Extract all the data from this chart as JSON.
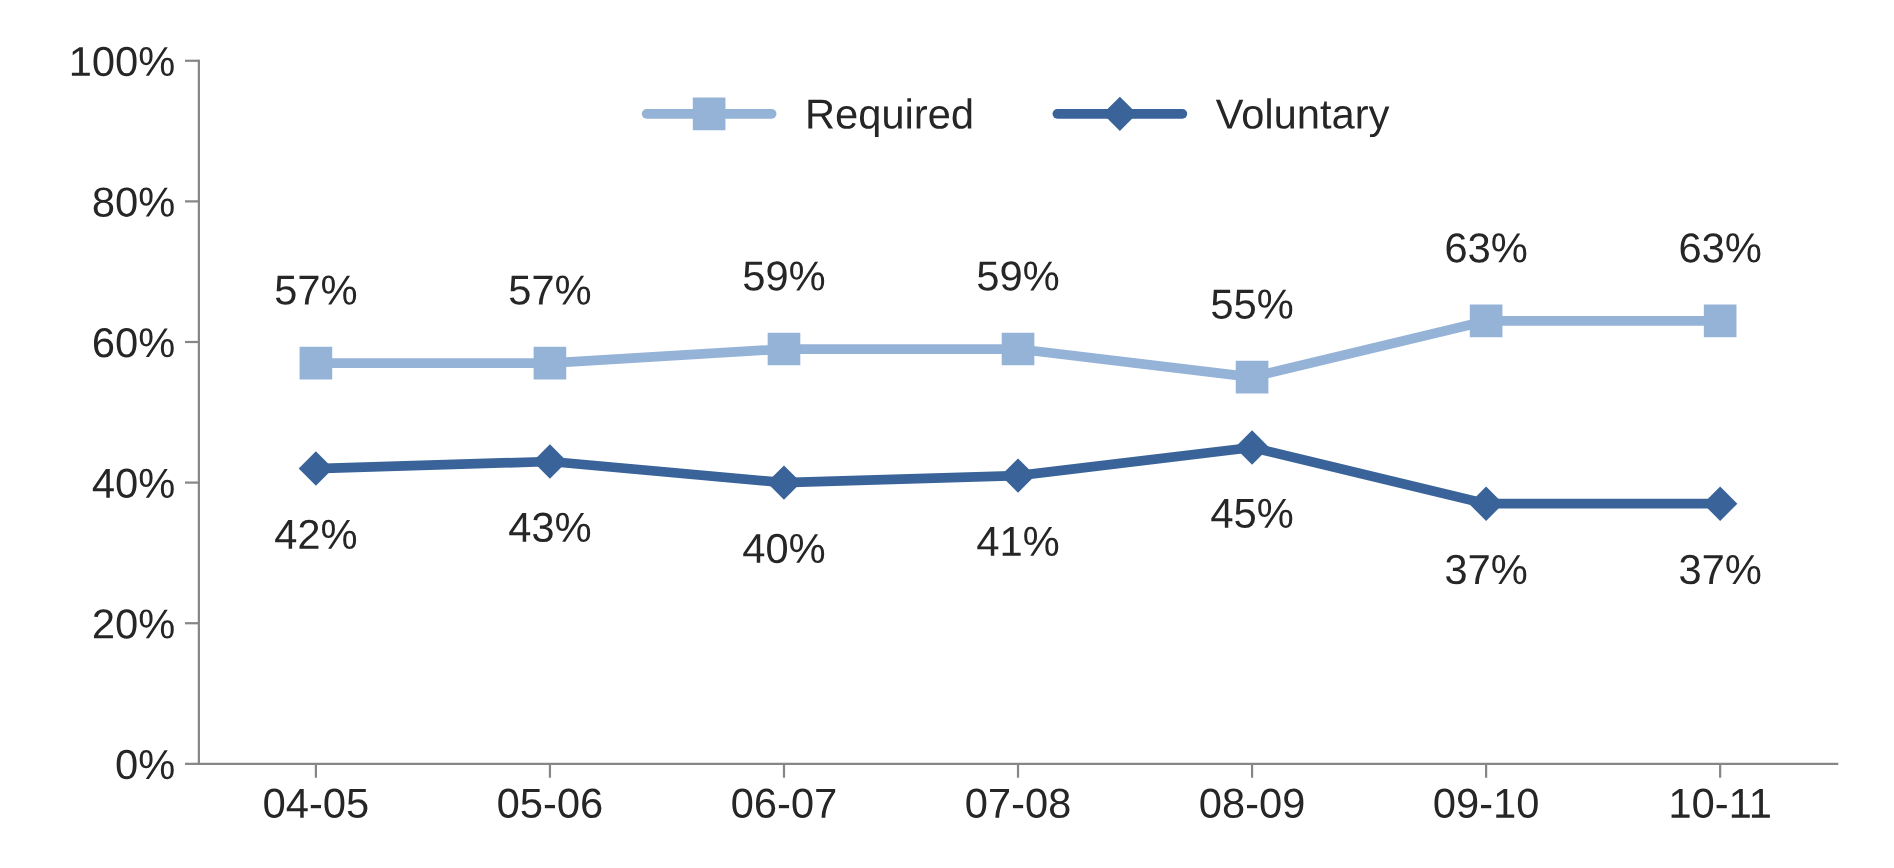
{
  "chart_data": {
    "type": "line",
    "categories": [
      "04-05",
      "05-06",
      "06-07",
      "07-08",
      "08-09",
      "09-10",
      "10-11"
    ],
    "series": [
      {
        "name": "Required",
        "color": "#95b3d7",
        "marker": "square",
        "values": [
          57,
          57,
          59,
          59,
          55,
          63,
          63
        ],
        "value_labels": [
          "57%",
          "57%",
          "59%",
          "59%",
          "55%",
          "63%",
          "63%"
        ]
      },
      {
        "name": "Voluntary",
        "color": "#3a6499",
        "marker": "diamond",
        "values": [
          42,
          43,
          40,
          41,
          45,
          37,
          37
        ],
        "value_labels": [
          "42%",
          "43%",
          "40%",
          "41%",
          "45%",
          "37%",
          "37%"
        ]
      }
    ],
    "ylim": [
      0,
      100
    ],
    "yticks": [
      {
        "value": 0,
        "label": "0%"
      },
      {
        "value": 20,
        "label": "20%"
      },
      {
        "value": 40,
        "label": "40%"
      },
      {
        "value": 60,
        "label": "60%"
      },
      {
        "value": 80,
        "label": "80%"
      },
      {
        "value": 100,
        "label": "100%"
      }
    ],
    "grid": false,
    "legend": "top",
    "line_style": "solid"
  }
}
